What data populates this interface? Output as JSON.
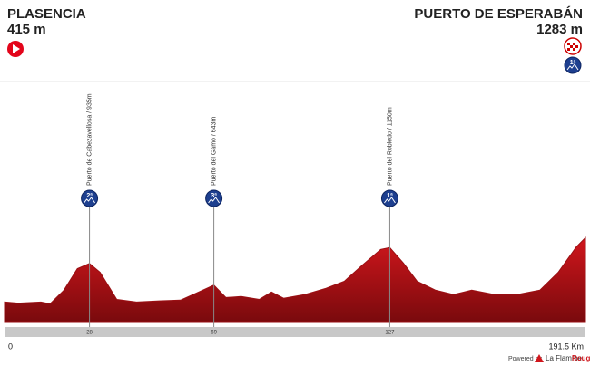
{
  "chart_data": {
    "type": "area",
    "start": {
      "name": "PLASENCIA",
      "elevation": "415 m"
    },
    "finish": {
      "name": "PUERTO DE ESPERABÁN",
      "elevation": "1283 m",
      "category": "1ª"
    },
    "x": [
      0,
      4.5,
      12,
      15,
      19.5,
      24,
      28,
      31.5,
      37,
      43.5,
      51,
      58,
      64,
      69,
      73,
      78,
      84,
      88,
      92,
      99,
      106,
      112,
      118,
      124,
      127,
      131.5,
      136,
      142,
      148,
      154,
      161.5,
      169,
      176.5,
      182.5,
      188.5,
      191.5
    ],
    "values": [
      415,
      400,
      415,
      390,
      570,
      865,
      935,
      815,
      450,
      415,
      430,
      440,
      550,
      643,
      475,
      490,
      450,
      550,
      465,
      515,
      600,
      695,
      915,
      1125,
      1150,
      940,
      695,
      575,
      515,
      575,
      515,
      515,
      575,
      815,
      1160,
      1283
    ],
    "color": "#9a1014",
    "xlim": [
      0,
      191.5
    ],
    "ylim": [
      150,
      1300
    ],
    "xticks": [
      0,
      28,
      69,
      127,
      {
        "value": 191.5,
        "label": "191.5 Km"
      }
    ],
    "climbs": [
      {
        "name": "Puerto de Cabezavellosa / 935m",
        "km": 28,
        "category": "2ª"
      },
      {
        "name": "Puerto del Gamo / 643m",
        "km": 69,
        "category": "3ª"
      },
      {
        "name": "Puerto del Robledo / 1150m",
        "km": 127,
        "category": "1ª"
      }
    ],
    "footer": {
      "powered": "Powered by",
      "brand": "La Flamme",
      "brand2": "Rouge"
    }
  }
}
